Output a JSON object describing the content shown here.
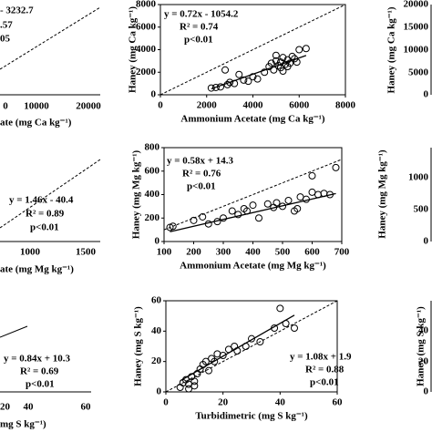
{
  "chart_data": [
    {
      "type": "scatter",
      "equation": "y = 0.72x - 1054.2",
      "r2": "R² = 0.74",
      "p": "p<0.01",
      "xlabel": "Ammonium Acetate (mg Ca kg⁻¹)",
      "ylabel": "Haney (mg Ca kg⁻¹)",
      "xlim": [
        0,
        8000
      ],
      "ylim": [
        0,
        8000
      ],
      "xticks": [
        0,
        2000,
        4000,
        6000,
        8000
      ],
      "yticks": [
        0,
        2000,
        4000,
        6000,
        8000
      ],
      "fit": {
        "slope": 0.72,
        "intercept": -1054.2
      },
      "color": "#000000",
      "x": [
        2200,
        2400,
        2600,
        2800,
        2900,
        3000,
        3200,
        3400,
        3600,
        3800,
        4000,
        4200,
        4500,
        4700,
        4800,
        4900,
        5000,
        5100,
        5200,
        5200,
        5300,
        5400,
        5500,
        5500,
        5600,
        5700,
        5800,
        5900,
        6000,
        6300,
        5000,
        5300
      ],
      "values": [
        600,
        650,
        700,
        2200,
        900,
        1100,
        1000,
        1800,
        1300,
        1200,
        1600,
        1400,
        2000,
        2500,
        2800,
        2200,
        3000,
        2600,
        2900,
        2400,
        3300,
        2700,
        3100,
        2500,
        2800,
        3400,
        3200,
        2900,
        4000,
        4100,
        3500,
        2100
      ]
    },
    {
      "type": "scatter",
      "equation": "y = 0.58x + 14.3",
      "r2": "R² = 0.76",
      "p": "p<0.01",
      "xlabel": "Ammonium Acetate (mg Mg kg⁻¹)",
      "ylabel": "Haney (mg Mg kg⁻¹)",
      "xlim": [
        100,
        700
      ],
      "ylim": [
        0,
        800
      ],
      "xticks": [
        100,
        200,
        300,
        400,
        500,
        600,
        700
      ],
      "yticks": [
        0,
        200,
        400,
        600,
        800
      ],
      "fit": {
        "slope": 0.58,
        "intercept": 14.3
      },
      "color": "#000000",
      "x": [
        120,
        130,
        200,
        230,
        250,
        280,
        300,
        330,
        350,
        370,
        380,
        400,
        420,
        450,
        470,
        480,
        500,
        520,
        540,
        550,
        560,
        580,
        600,
        620,
        640,
        600,
        680,
        660
      ],
      "values": [
        120,
        130,
        180,
        210,
        150,
        170,
        200,
        260,
        230,
        280,
        260,
        310,
        200,
        320,
        290,
        330,
        300,
        350,
        260,
        280,
        380,
        360,
        420,
        400,
        410,
        560,
        630,
        400
      ]
    },
    {
      "type": "scatter",
      "equation": "y = 1.08x + 1.9",
      "r2": "R² = 0.88",
      "p": "p<0.01",
      "xlabel": "Turbidimetric (mg S kg⁻¹)",
      "ylabel": "Haney (mg S kg⁻¹)",
      "xlim": [
        0,
        60
      ],
      "ylim": [
        0,
        60
      ],
      "xticks": [
        0,
        20,
        40,
        60
      ],
      "yticks": [
        0,
        20,
        40,
        60
      ],
      "fit": {
        "slope": 1.08,
        "intercept": 1.9
      },
      "color": "#000000",
      "x": [
        5,
        6,
        7,
        8,
        9,
        10,
        11,
        12,
        13,
        14,
        15,
        16,
        17,
        18,
        20,
        22,
        24,
        25,
        28,
        30,
        33,
        38,
        40,
        42,
        45,
        8,
        10
      ],
      "values": [
        3,
        6,
        8,
        5,
        10,
        7,
        12,
        15,
        18,
        20,
        14,
        22,
        20,
        25,
        24,
        28,
        30,
        27,
        30,
        35,
        33,
        42,
        55,
        45,
        42,
        2,
        4
      ]
    }
  ],
  "edge_labels": [
    "- 3232.7",
    ".57",
    "05",
    "0",
    "10000",
    "20000",
    "ate (mg Ca kg⁻¹)",
    "y = 1.46x - 40.4",
    "R² = 0.89",
    "p<0.01",
    "1000",
    "1500",
    "ate (mg Mg kg⁻¹)",
    "y = 0.84x + 10.3",
    "R² = 0.69",
    "p<0.01",
    "20",
    "40",
    "60",
    "mg S kg⁻¹)",
    "20000",
    "15000",
    "10000",
    "5000",
    "0",
    "Haney (mg Ca kg⁻¹)",
    "1000",
    "500",
    "0",
    "Haney (mg Mg kg⁻¹)",
    "40",
    "20",
    "0",
    "Haney (mg S kg⁻¹)"
  ]
}
